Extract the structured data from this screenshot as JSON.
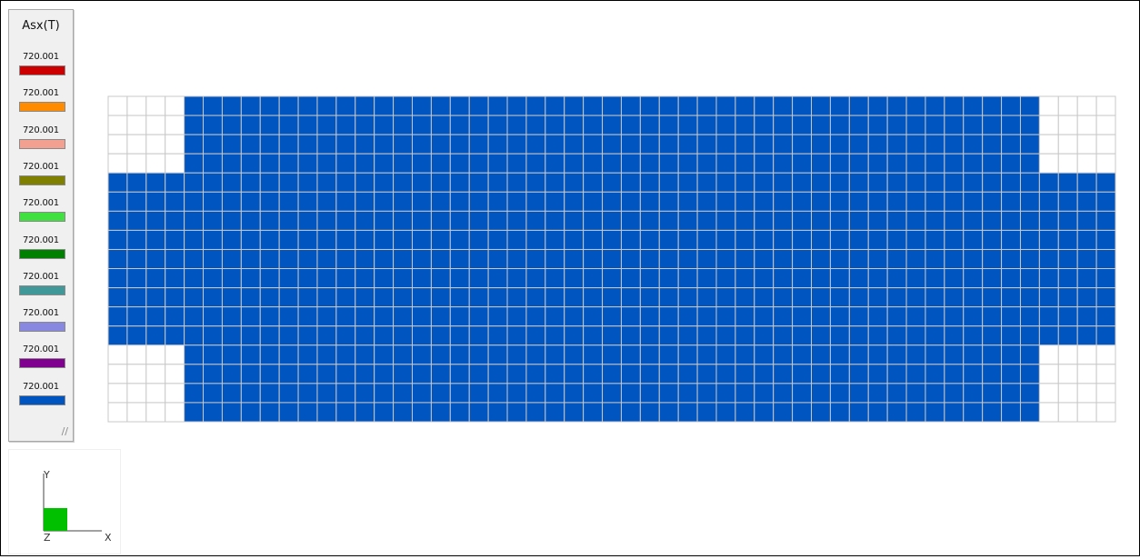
{
  "legend": {
    "title": "Asx(T)",
    "items": [
      {
        "value": "720.001",
        "color": "#cc0000"
      },
      {
        "value": "720.001",
        "color": "#ff8c00"
      },
      {
        "value": "720.001",
        "color": "#f4a090"
      },
      {
        "value": "720.001",
        "color": "#808000"
      },
      {
        "value": "720.001",
        "color": "#40e040"
      },
      {
        "value": "720.001",
        "color": "#008000"
      },
      {
        "value": "720.001",
        "color": "#409898"
      },
      {
        "value": "720.001",
        "color": "#8888e0"
      },
      {
        "value": "720.001",
        "color": "#800090"
      },
      {
        "value": "720.001",
        "color": "#0055c0"
      }
    ]
  },
  "mesh": {
    "columns": 53,
    "rows": 17,
    "fill_color": "#0055c0",
    "empty_color": "#ffffff",
    "line_color": "#c8c8c8",
    "empty_corner_columns": 4,
    "empty_corner_rows_top": 4,
    "empty_corner_rows_bottom": 4
  },
  "axes": {
    "y_label": "Y",
    "x_label": "X",
    "z_label": "Z",
    "origin_color": "#00c000"
  }
}
